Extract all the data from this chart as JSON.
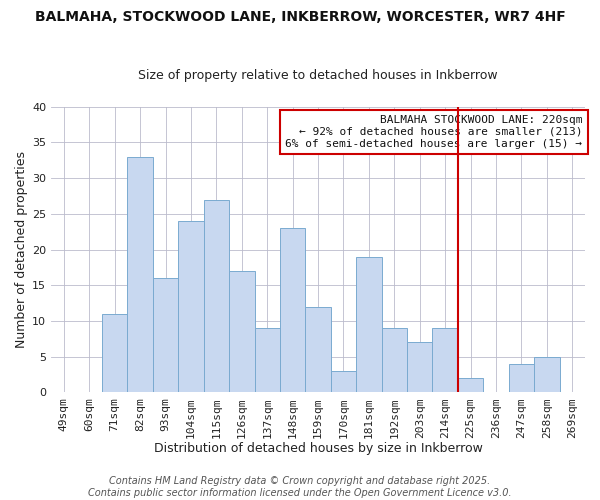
{
  "title": "BALMAHA, STOCKWOOD LANE, INKBERROW, WORCESTER, WR7 4HF",
  "subtitle": "Size of property relative to detached houses in Inkberrow",
  "xlabel": "Distribution of detached houses by size in Inkberrow",
  "ylabel": "Number of detached properties",
  "footer1": "Contains HM Land Registry data © Crown copyright and database right 2025.",
  "footer2": "Contains public sector information licensed under the Open Government Licence v3.0.",
  "categories": [
    "49sqm",
    "60sqm",
    "71sqm",
    "82sqm",
    "93sqm",
    "104sqm",
    "115sqm",
    "126sqm",
    "137sqm",
    "148sqm",
    "159sqm",
    "170sqm",
    "181sqm",
    "192sqm",
    "203sqm",
    "214sqm",
    "225sqm",
    "236sqm",
    "247sqm",
    "258sqm",
    "269sqm"
  ],
  "values": [
    0,
    0,
    11,
    33,
    16,
    24,
    27,
    17,
    9,
    23,
    12,
    3,
    19,
    9,
    7,
    9,
    2,
    0,
    4,
    5,
    0
  ],
  "bar_color": "#c8d8f0",
  "bar_edge_color": "#7aaad0",
  "highlight_index": 16,
  "highlight_line_color": "#cc0000",
  "annotation_box_edge_color": "#cc0000",
  "annotation_title": "BALMAHA STOCKWOOD LANE: 220sqm",
  "annotation_line1": "← 92% of detached houses are smaller (213)",
  "annotation_line2": "6% of semi-detached houses are larger (15) →",
  "ylim": [
    0,
    40
  ],
  "yticks": [
    0,
    5,
    10,
    15,
    20,
    25,
    30,
    35,
    40
  ],
  "grid_color": "#bbbbcc",
  "title_fontsize": 10,
  "subtitle_fontsize": 9,
  "annotation_fontsize": 8,
  "axis_label_fontsize": 9,
  "tick_fontsize": 8,
  "footer_fontsize": 7
}
